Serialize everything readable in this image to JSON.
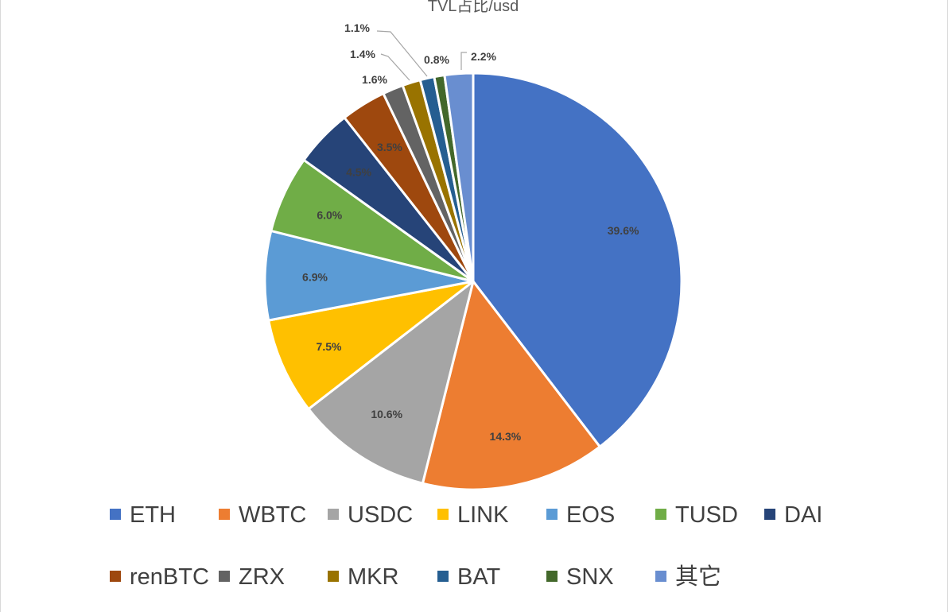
{
  "chart_data": {
    "type": "pie",
    "title": "TVL占比/usd",
    "categories": [
      "ETH",
      "WBTC",
      "USDC",
      "LINK",
      "EOS",
      "TUSD",
      "DAI",
      "renBTC",
      "ZRX",
      "MKR",
      "BAT",
      "SNX",
      "其它"
    ],
    "values": [
      39.6,
      14.3,
      10.6,
      7.5,
      6.9,
      6.0,
      4.5,
      3.5,
      1.6,
      1.4,
      1.1,
      0.8,
      2.2
    ],
    "labels": [
      "39.6%",
      "14.3%",
      "10.6%",
      "7.5%",
      "6.9%",
      "6.0%",
      "4.5%",
      "3.5%",
      "1.6%",
      "1.4%",
      "1.1%",
      "0.8%",
      "2.2%"
    ],
    "colors": [
      "#4472C4",
      "#ED7D31",
      "#A5A5A5",
      "#FFC000",
      "#5B9BD5",
      "#70AD47",
      "#264478",
      "#9E480E",
      "#636363",
      "#997300",
      "#255E91",
      "#43682B",
      "#698ED0"
    ],
    "legend_position": "bottom"
  }
}
